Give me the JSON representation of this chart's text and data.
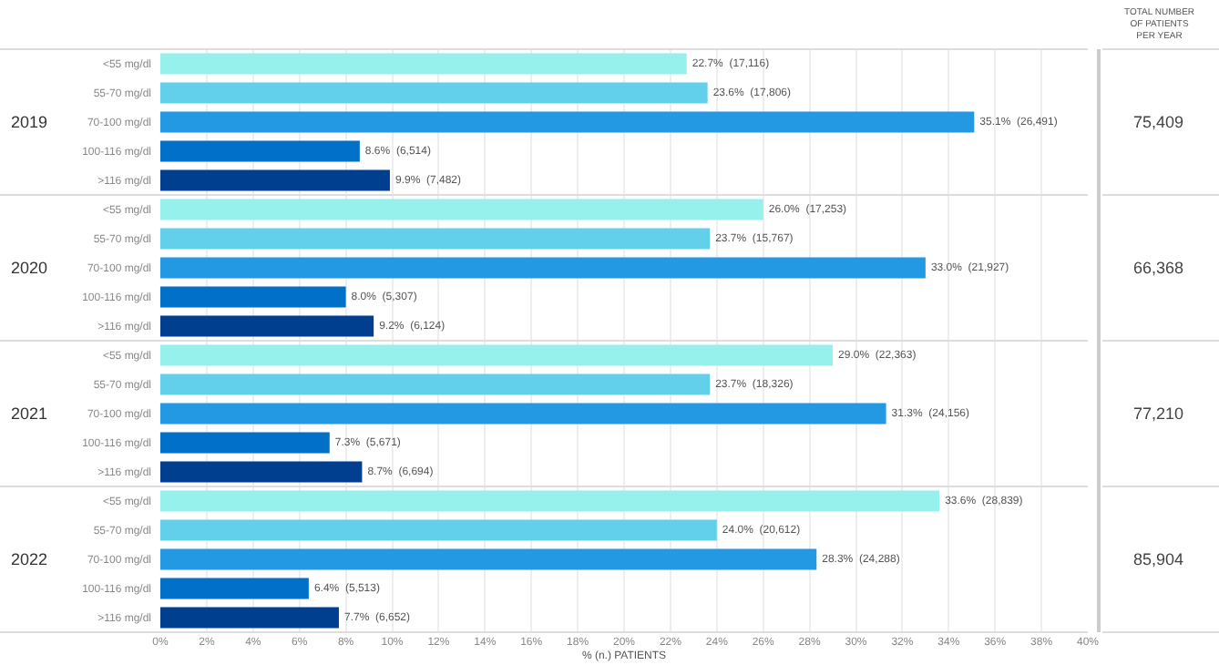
{
  "chart_data": [
    {
      "type": "bar",
      "orientation": "horizontal",
      "title": "2019",
      "categories": [
        "<55 mg/dl",
        "55-70 mg/dl",
        "70-100 mg/dl",
        "100-116 mg/dl",
        ">116 mg/dl"
      ],
      "values": [
        22.7,
        23.6,
        35.1,
        8.6,
        9.9
      ],
      "colors": [
        "#96f0ec",
        "#62cfeb",
        "#2399e3",
        "#0070c9",
        "#003f8f"
      ],
      "value_labels": [
        "22.7%  (17,116)",
        "23.6%  (17,806)",
        "35.1%  (26,491)",
        "8.6%  (6,514)",
        "9.9%  (7,482)"
      ],
      "xlim": [
        0,
        40
      ],
      "xticks": [
        0,
        2,
        4,
        6,
        8,
        10,
        12,
        14,
        16,
        18,
        20,
        22,
        24,
        26,
        28,
        30,
        32,
        34,
        36,
        38,
        40
      ],
      "grid": "x",
      "tick_labels": "y",
      "annotations": [
        "TOTAL NUMBER OF PATIENTS PER YEAR",
        "75,409"
      ]
    },
    {
      "type": "bar",
      "orientation": "horizontal",
      "title": "2020",
      "categories": [
        "<55 mg/dl",
        "55-70 mg/dl",
        "70-100 mg/dl",
        "100-116 mg/dl",
        ">116 mg/dl"
      ],
      "values": [
        26.0,
        23.7,
        33.0,
        8.0,
        9.2
      ],
      "colors": [
        "#96f0ec",
        "#62cfeb",
        "#2399e3",
        "#0070c9",
        "#003f8f"
      ],
      "value_labels": [
        "26.0%  (17,253)",
        "23.7%  (15,767)",
        "33.0%  (21,927)",
        "8.0%  (5,307)",
        "9.2%  (6,124)"
      ],
      "xlim": [
        0,
        40
      ],
      "xticks": [
        0,
        2,
        4,
        6,
        8,
        10,
        12,
        14,
        16,
        18,
        20,
        22,
        24,
        26,
        28,
        30,
        32,
        34,
        36,
        38,
        40
      ],
      "grid": "x",
      "tick_labels": "y",
      "annotations": [
        "66,368"
      ]
    },
    {
      "type": "bar",
      "orientation": "horizontal",
      "title": "2021",
      "categories": [
        "<55 mg/dl",
        "55-70 mg/dl",
        "70-100 mg/dl",
        "100-116 mg/dl",
        ">116 mg/dl"
      ],
      "values": [
        29.0,
        23.7,
        31.3,
        7.3,
        8.7
      ],
      "colors": [
        "#96f0ec",
        "#62cfeb",
        "#2399e3",
        "#0070c9",
        "#003f8f"
      ],
      "value_labels": [
        "29.0%  (22,363)",
        "23.7%  (18,326)",
        "31.3%  (24,156)",
        "7.3%  (5,671)",
        "8.7%  (6,694)"
      ],
      "xlim": [
        0,
        40
      ],
      "xticks": [
        0,
        2,
        4,
        6,
        8,
        10,
        12,
        14,
        16,
        18,
        20,
        22,
        24,
        26,
        28,
        30,
        32,
        34,
        36,
        38,
        40
      ],
      "grid": "x",
      "tick_labels": "y",
      "annotations": [
        "77,210"
      ]
    },
    {
      "type": "bar",
      "orientation": "horizontal",
      "title": "2022",
      "categories": [
        "<55 mg/dl",
        "55-70 mg/dl",
        "70-100 mg/dl",
        "100-116 mg/dl",
        ">116 mg/dl"
      ],
      "values": [
        33.6,
        24.0,
        28.3,
        6.4,
        7.7
      ],
      "colors": [
        "#96f0ec",
        "#62cfeb",
        "#2399e3",
        "#0070c9",
        "#003f8f"
      ],
      "value_labels": [
        "33.6%  (28,839)",
        "24.0%  (20,612)",
        "28.3%  (24,288)",
        "6.4%  (5,513)",
        "7.7%  (6,652)"
      ],
      "xlim": [
        0,
        40
      ],
      "xticks": [
        {
          "value": 0,
          "label": "0%"
        },
        {
          "value": 2,
          "label": "2%"
        },
        {
          "value": 4,
          "label": "4%"
        },
        {
          "value": 6,
          "label": "6%"
        },
        {
          "value": 8,
          "label": "8%"
        },
        {
          "value": 10,
          "label": "10%"
        },
        {
          "value": 12,
          "label": "12%"
        },
        {
          "value": 14,
          "label": "14%"
        },
        {
          "value": 16,
          "label": "16%"
        },
        {
          "value": 18,
          "label": "18%"
        },
        {
          "value": 20,
          "label": "20%"
        },
        {
          "value": 22,
          "label": "22%"
        },
        {
          "value": 24,
          "label": "24%"
        },
        {
          "value": 26,
          "label": "26%"
        },
        {
          "value": 28,
          "label": "28%"
        },
        {
          "value": 30,
          "label": "30%"
        },
        {
          "value": 32,
          "label": "32%"
        },
        {
          "value": 34,
          "label": "34%"
        },
        {
          "value": 36,
          "label": "36%"
        },
        {
          "value": 38,
          "label": "38%"
        },
        {
          "value": 40,
          "label": "40%"
        }
      ],
      "xlabel": "% (n.) PATIENTS",
      "grid": "x",
      "annotations": [
        "85,904"
      ]
    }
  ]
}
